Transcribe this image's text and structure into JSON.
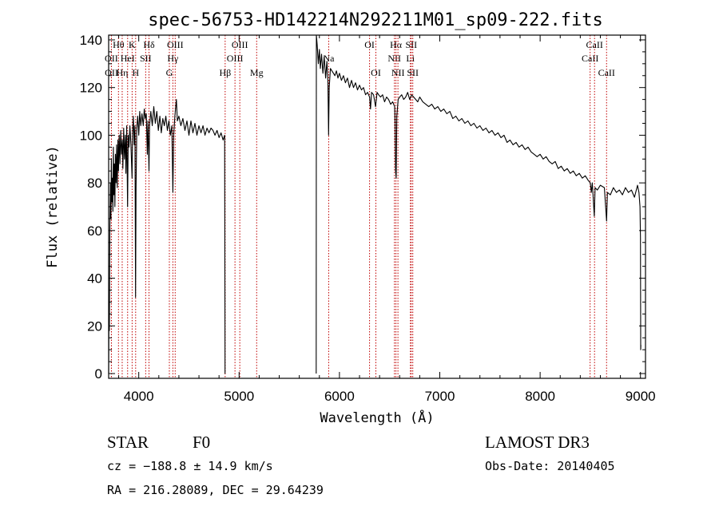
{
  "chart_data": {
    "type": "line",
    "title": "spec-56753-HD142214N292211M01_sp09-222.fits",
    "xlabel": "Wavelength (Å)",
    "ylabel": "Flux (relative)",
    "xlim": [
      3700,
      9050
    ],
    "ylim": [
      -2,
      142
    ],
    "xticks": [
      4000,
      5000,
      6000,
      7000,
      8000,
      9000
    ],
    "yticks": [
      0,
      20,
      40,
      60,
      80,
      100,
      120,
      140
    ],
    "series": [
      {
        "name": "spectrum",
        "color": "#000000",
        "segments": [
          [
            [
              3700,
              0
            ],
            [
              3703,
              30
            ],
            [
              3707,
              18
            ],
            [
              3712,
              60
            ],
            [
              3718,
              80
            ],
            [
              3722,
              65
            ],
            [
              3727,
              90
            ],
            [
              3732,
              72
            ],
            [
              3737,
              82
            ],
            [
              3742,
              68
            ],
            [
              3747,
              95
            ],
            [
              3752,
              75
            ],
            [
              3757,
              88
            ],
            [
              3762,
              70
            ],
            [
              3768,
              92
            ],
            [
              3774,
              80
            ],
            [
              3780,
              96
            ],
            [
              3786,
              78
            ],
            [
              3792,
              98
            ],
            [
              3798,
              85
            ],
            [
              3805,
              100
            ],
            [
              3812,
              88
            ],
            [
              3820,
              102
            ],
            [
              3828,
              92
            ],
            [
              3836,
              98
            ],
            [
              3842,
              86
            ],
            [
              3850,
              103
            ],
            [
              3858,
              90
            ],
            [
              3866,
              100
            ],
            [
              3872,
              84
            ],
            [
              3880,
              104
            ],
            [
              3889,
              70
            ],
            [
              3895,
              100
            ],
            [
              3903,
              95
            ],
            [
              3912,
              104
            ],
            [
              3922,
              96
            ],
            [
              3933,
              82
            ],
            [
              3938,
              100
            ],
            [
              3946,
              108
            ],
            [
              3955,
              96
            ],
            [
              3962,
              104
            ],
            [
              3968,
              32
            ],
            [
              3973,
              78
            ],
            [
              3980,
              103
            ],
            [
              3990,
              108
            ],
            [
              4000,
              100
            ],
            [
              4010,
              110
            ],
            [
              4020,
              104
            ],
            [
              4032,
              109
            ],
            [
              4045,
              104
            ],
            [
              4055,
              111
            ],
            [
              4065,
              107
            ],
            [
              4075,
              109
            ],
            [
              4085,
              92
            ],
            [
              4092,
              106
            ],
            [
              4102,
              85
            ],
            [
              4108,
              104
            ],
            [
              4120,
              110
            ],
            [
              4135,
              104
            ],
            [
              4150,
              112
            ],
            [
              4165,
              105
            ],
            [
              4180,
              110
            ],
            [
              4195,
              102
            ],
            [
              4210,
              108
            ],
            [
              4225,
              101
            ],
            [
              4240,
              107
            ],
            [
              4255,
              104
            ],
            [
              4270,
              108
            ],
            [
              4285,
              102
            ],
            [
              4300,
              106
            ],
            [
              4315,
              100
            ],
            [
              4330,
              104
            ],
            [
              4340,
              76
            ],
            [
              4348,
              100
            ],
            [
              4360,
              108
            ],
            [
              4375,
              115
            ],
            [
              4385,
              106
            ],
            [
              4400,
              108
            ],
            [
              4420,
              104
            ],
            [
              4440,
              107
            ],
            [
              4460,
              102
            ],
            [
              4480,
              106
            ],
            [
              4500,
              100
            ],
            [
              4520,
              106
            ],
            [
              4540,
              101
            ],
            [
              4560,
              105
            ],
            [
              4580,
              100
            ],
            [
              4600,
              104
            ],
            [
              4620,
              101
            ],
            [
              4640,
              104
            ],
            [
              4660,
              100
            ],
            [
              4680,
              103
            ],
            [
              4700,
              101
            ],
            [
              4720,
              103
            ],
            [
              4740,
              102
            ],
            [
              4760,
              100
            ],
            [
              4780,
              102
            ],
            [
              4800,
              99
            ],
            [
              4820,
              101
            ],
            [
              4840,
              98
            ],
            [
              4856,
              100
            ],
            [
              4860,
              0
            ],
            [
              4861,
              0
            ]
          ],
          [
            [
              5768,
              0
            ],
            [
              5770,
              142
            ],
            [
              5778,
              138
            ],
            [
              5790,
              130
            ],
            [
              5800,
              136
            ],
            [
              5810,
              128
            ],
            [
              5822,
              134
            ],
            [
              5835,
              126
            ],
            [
              5848,
              133
            ],
            [
              5862,
              124
            ],
            [
              5875,
              131
            ],
            [
              5885,
              122
            ],
            [
              5892,
              100
            ],
            [
              5898,
              120
            ],
            [
              5910,
              128
            ],
            [
              5925,
              127
            ],
            [
              5940,
              126
            ],
            [
              5955,
              125
            ],
            [
              5970,
              127
            ],
            [
              5985,
              124
            ],
            [
              6000,
              126
            ],
            [
              6020,
              123
            ],
            [
              6040,
              125
            ],
            [
              6060,
              122
            ],
            [
              6080,
              124
            ],
            [
              6100,
              120
            ],
            [
              6120,
              123
            ],
            [
              6140,
              120
            ],
            [
              6160,
              122
            ],
            [
              6180,
              119
            ],
            [
              6200,
              121
            ],
            [
              6220,
              119
            ],
            [
              6240,
              120
            ],
            [
              6260,
              117
            ],
            [
              6280,
              118
            ],
            [
              6300,
              116
            ],
            [
              6310,
              111
            ],
            [
              6320,
              118
            ],
            [
              6340,
              117
            ],
            [
              6360,
              112
            ],
            [
              6375,
              118
            ],
            [
              6390,
              117
            ],
            [
              6410,
              116
            ],
            [
              6430,
              117
            ],
            [
              6450,
              114
            ],
            [
              6470,
              116
            ],
            [
              6490,
              115
            ],
            [
              6510,
              113
            ],
            [
              6530,
              114
            ],
            [
              6550,
              112
            ],
            [
              6555,
              105
            ],
            [
              6560,
              85
            ],
            [
              6565,
              82
            ],
            [
              6572,
              108
            ],
            [
              6585,
              115
            ],
            [
              6600,
              116
            ],
            [
              6620,
              117
            ],
            [
              6640,
              115
            ],
            [
              6660,
              116
            ],
            [
              6680,
              118
            ],
            [
              6700,
              115
            ],
            [
              6720,
              117
            ],
            [
              6740,
              116
            ],
            [
              6760,
              115
            ],
            [
              6780,
              114
            ],
            [
              6800,
              116
            ],
            [
              6830,
              114
            ],
            [
              6860,
              113
            ],
            [
              6890,
              112
            ],
            [
              6920,
              113
            ],
            [
              6950,
              111
            ],
            [
              6980,
              112
            ],
            [
              7010,
              110
            ],
            [
              7040,
              111
            ],
            [
              7070,
              109
            ],
            [
              7100,
              110
            ],
            [
              7130,
              107
            ],
            [
              7160,
              108
            ],
            [
              7190,
              106
            ],
            [
              7220,
              107
            ],
            [
              7250,
              105
            ],
            [
              7280,
              106
            ],
            [
              7310,
              104
            ],
            [
              7340,
              105
            ],
            [
              7370,
              103
            ],
            [
              7400,
              104
            ],
            [
              7430,
              102
            ],
            [
              7460,
              103
            ],
            [
              7490,
              101
            ],
            [
              7520,
              102
            ],
            [
              7550,
              100
            ],
            [
              7580,
              101
            ],
            [
              7610,
              99
            ],
            [
              7640,
              100
            ],
            [
              7670,
              97
            ],
            [
              7700,
              98
            ],
            [
              7730,
              96
            ],
            [
              7760,
              97
            ],
            [
              7790,
              95
            ],
            [
              7820,
              96
            ],
            [
              7850,
              94
            ],
            [
              7880,
              95
            ],
            [
              7910,
              93
            ],
            [
              7940,
              92
            ],
            [
              7970,
              91
            ],
            [
              8000,
              92
            ],
            [
              8030,
              90
            ],
            [
              8060,
              91
            ],
            [
              8090,
              89
            ],
            [
              8120,
              88
            ],
            [
              8150,
              89
            ],
            [
              8180,
              86
            ],
            [
              8210,
              87
            ],
            [
              8240,
              85
            ],
            [
              8270,
              86
            ],
            [
              8300,
              84
            ],
            [
              8330,
              85
            ],
            [
              8360,
              83
            ],
            [
              8390,
              84
            ],
            [
              8420,
              82
            ],
            [
              8450,
              83
            ],
            [
              8480,
              81
            ],
            [
              8500,
              80
            ],
            [
              8510,
              76
            ],
            [
              8520,
              80
            ],
            [
              8540,
              66
            ],
            [
              8548,
              78
            ],
            [
              8570,
              77
            ],
            [
              8600,
              79
            ],
            [
              8640,
              78
            ],
            [
              8662,
              64
            ],
            [
              8670,
              76
            ],
            [
              8700,
              75
            ],
            [
              8730,
              78
            ],
            [
              8760,
              76
            ],
            [
              8790,
              77
            ],
            [
              8820,
              75
            ],
            [
              8850,
              78
            ],
            [
              8880,
              76
            ],
            [
              8910,
              77
            ],
            [
              8940,
              74
            ],
            [
              8970,
              79
            ],
            [
              8985,
              76
            ],
            [
              8995,
              70
            ],
            [
              9000,
              57
            ],
            [
              9002,
              10
            ],
            [
              9004,
              12
            ]
          ]
        ]
      }
    ],
    "spectral_lines": [
      {
        "name": "OII",
        "wavelength": 3727,
        "row": 1
      },
      {
        "name": "Hθ",
        "wavelength": 3798,
        "row": 0
      },
      {
        "name": "Hη",
        "wavelength": 3835,
        "row": 2
      },
      {
        "name": "OII",
        "wavelength": 3728,
        "row": 2
      },
      {
        "name": "HeI",
        "wavelength": 3889,
        "row": 1
      },
      {
        "name": "K",
        "wavelength": 3934,
        "row": 0
      },
      {
        "name": "H",
        "wavelength": 3969,
        "row": 2
      },
      {
        "name": "SII",
        "wavelength": 4069,
        "row": 1
      },
      {
        "name": "Hδ",
        "wavelength": 4102,
        "row": 0
      },
      {
        "name": "G",
        "wavelength": 4305,
        "row": 2
      },
      {
        "name": "Hγ",
        "wavelength": 4340,
        "row": 1
      },
      {
        "name": "OIII",
        "wavelength": 4363,
        "row": 0
      },
      {
        "name": "Hβ",
        "wavelength": 4861,
        "row": 2
      },
      {
        "name": "OIII",
        "wavelength": 4959,
        "row": 1
      },
      {
        "name": "OIII",
        "wavelength": 5007,
        "row": 0
      },
      {
        "name": "Mg",
        "wavelength": 5175,
        "row": 2
      },
      {
        "name": "Na",
        "wavelength": 5893,
        "row": 1
      },
      {
        "name": "OI",
        "wavelength": 6300,
        "row": 0
      },
      {
        "name": "OI",
        "wavelength": 6363,
        "row": 2
      },
      {
        "name": "NII",
        "wavelength": 6548,
        "row": 1
      },
      {
        "name": "Hα",
        "wavelength": 6563,
        "row": 0
      },
      {
        "name": "NII",
        "wavelength": 6583,
        "row": 2
      },
      {
        "name": "Li",
        "wavelength": 6707,
        "row": 1
      },
      {
        "name": "SII",
        "wavelength": 6716,
        "row": 0
      },
      {
        "name": "SII",
        "wavelength": 6731,
        "row": 2
      },
      {
        "name": "CaII",
        "wavelength": 8498,
        "row": 1
      },
      {
        "name": "CaII",
        "wavelength": 8542,
        "row": 0
      },
      {
        "name": "CaII",
        "wavelength": 8662,
        "row": 2
      }
    ],
    "line_color": "#c00000"
  },
  "info": {
    "object_class": "STAR",
    "subclass": "F0",
    "survey": "LAMOST DR3",
    "redshift_text": "cz = −188.8 ± 14.9 km/s",
    "obs_date": "Obs-Date: 20140405",
    "coords": "RA = 216.28089, DEC =  29.64239"
  }
}
